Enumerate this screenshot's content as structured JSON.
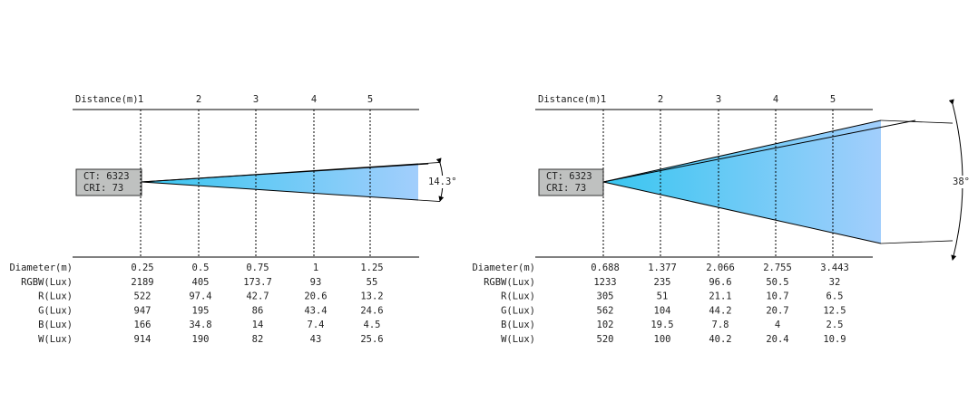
{
  "panels": [
    {
      "distance_label": "Distance(m)",
      "distances": [
        1,
        2,
        3,
        4,
        5
      ],
      "ct": "CT: 6323",
      "cri": "CRI: 73",
      "angle": "14.3°",
      "rows": [
        {
          "label": "Diameter(m)",
          "values": [
            0.25,
            0.5,
            0.75,
            1,
            1.25
          ]
        },
        {
          "label": "RGBW(Lux)",
          "values": [
            2189,
            405,
            173.7,
            93,
            55
          ]
        },
        {
          "label": "R(Lux)",
          "values": [
            522,
            97.4,
            42.7,
            20.6,
            13.2
          ]
        },
        {
          "label": "G(Lux)",
          "values": [
            947,
            195,
            86,
            43.4,
            24.6
          ]
        },
        {
          "label": "B(Lux)",
          "values": [
            166,
            34.8,
            14,
            7.4,
            4.5
          ]
        },
        {
          "label": "W(Lux)",
          "values": [
            914,
            190,
            82,
            43,
            25.6
          ]
        }
      ]
    },
    {
      "distance_label": "Distance(m)",
      "distances": [
        1,
        2,
        3,
        4,
        5
      ],
      "ct": "CT: 6323",
      "cri": "CRI: 73",
      "angle": "38°",
      "rows": [
        {
          "label": "Diameter(m)",
          "values": [
            0.688,
            1.377,
            2.066,
            2.755,
            3.443
          ]
        },
        {
          "label": "RGBW(Lux)",
          "values": [
            1233,
            235,
            96.6,
            50.5,
            32
          ]
        },
        {
          "label": "R(Lux)",
          "values": [
            305,
            51,
            21.1,
            10.7,
            6.5
          ]
        },
        {
          "label": "G(Lux)",
          "values": [
            562,
            104,
            44.2,
            20.7,
            12.5
          ]
        },
        {
          "label": "B(Lux)",
          "values": [
            102,
            19.5,
            7.8,
            4,
            2.5
          ]
        },
        {
          "label": "W(Lux)",
          "values": [
            520,
            100,
            40.2,
            20.4,
            10.9
          ]
        }
      ]
    }
  ]
}
